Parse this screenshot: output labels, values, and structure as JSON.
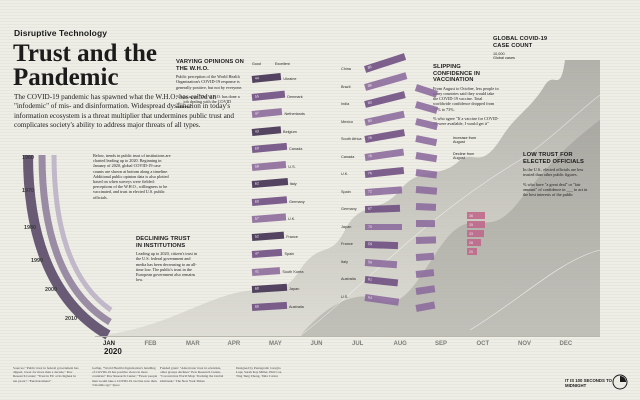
{
  "header": {
    "series": "Disruptive Technology",
    "title": "Trust and the Pandemic",
    "lede": "The COVID-19 pandemic has spawned what the W.H.O. has called an \"infodemic\" of mis- and disinformation. Widespread dysfunction in today's information ecosystem is a threat multiplier that undermines public trust and complicates society's ability to address major threats of all types."
  },
  "intro_note": "Below, trends in public trust of institutions are charted leading up to 2020. Beginning in January of 2020, global COVID-19 case counts are shown at bottom along a timeline. Additional public opinion data is also plotted based on when surveys were fielded: perceptions of the W.H.O., willingness to be vaccinated, and trust in elected U.S. public officials.",
  "declining": {
    "title": "DECLINING TRUST IN INSTITUTIONS",
    "body": "Leading up to 2020, citizen's trust in the U.S. federal government and media has been decreasing to an all-time low. The public's trust in the European government also remains low."
  },
  "who": {
    "title": "VARYING OPINIONS ON THE W.H.O.",
    "body": "Public perception of the World Health Organization's COVID-19 response is generally positive, but not by everyone.",
    "sub": "% who agree \"The W.H.O. has done a ___ job dealing with the COVID outbreak\"",
    "legend": [
      "Good",
      "Excellent"
    ]
  },
  "vaccination": {
    "title": "SLIPPING CONFIDENCE IN VACCINATION",
    "body": "From August to October, less people in many countries said they would take the COVID-19 vaccine. Total worldwide confidence dropped from 77% to 73%.",
    "sub": "% who agree \"If a vaccine for COVID-19 were available, I would get it\"",
    "legend": [
      "Increase from August",
      "Decline from August"
    ]
  },
  "elected": {
    "title": "LOW TRUST FOR ELECTED OFFICIALS",
    "body": "In the U.S., elected officials are less trusted than other public figures.",
    "sub": "% who have \"a great deal\" or \"fair amount\" of confidence in ___ to act in the best interests of the public"
  },
  "cases": {
    "title": "GLOBAL COVID-19 CASE COUNT",
    "legend": [
      "10,000",
      "Global cases"
    ]
  },
  "timeline": {
    "year": "2020",
    "months": [
      "JAN",
      "FEB",
      "MAR",
      "APR",
      "MAY",
      "JUN",
      "JUL",
      "AUG",
      "SEP",
      "OCT",
      "NOV",
      "DEC"
    ]
  },
  "decades": [
    "1960",
    "1970",
    "1980",
    "1990",
    "2000",
    "2010"
  ],
  "who_countries": [
    "Ukraine",
    "Denmark",
    "Netherlands",
    "Belgium",
    "Canada",
    "U.S.",
    "Italy",
    "Germany",
    "U.K.",
    "France",
    "Spain",
    "South Korea",
    "Japan",
    "Australia"
  ],
  "who_values": [
    "44",
    "55",
    "47",
    "43",
    "60",
    "58",
    "62",
    "60",
    "57",
    "52",
    "47",
    "41",
    "60",
    "60"
  ],
  "vac_countries": [
    "China",
    "Brazil",
    "India",
    "Mexico",
    "South Africa",
    "Canada",
    "U.K.",
    "Spain",
    "Germany",
    "Japan",
    "France",
    "Italy",
    "Australia",
    "U.S."
  ],
  "vac_values": [
    "85",
    "88",
    "83",
    "80",
    "79",
    "78",
    "76",
    "72",
    "67",
    "70",
    "59",
    "58",
    "61",
    "64"
  ],
  "elected_values": [
    "36",
    "35",
    "33",
    "28",
    "20"
  ],
  "sources": [
    "Sources: \"Public trust in federal government has dipped, lower for more than a decade,\" Pew Research Center; \"Trust in EU at its highest in ten years\"; \"Eurobarometer\"",
    "Gallup, \"World Health Organization's handling of COVID-19 has positive views in most countries\" Pew Research Center; \"Fewer people than would take a COVID-19 vaccine now than 3 months ago\" Ipsos",
    "Funded grant: \"Americans' trust in scientists, other groups declines\" Pew Research Center, \"Coronavirus World Map: Tracking the Global Outbreak,\" The New York Times",
    "Designed by Pentagram: Giorgia Lupi, Sarah Kay Miller, Phil Cox, Ting Tang Zhong, Talia Cotton"
  ],
  "footer": "IT IS 100 SECONDS TO MIDNIGHT"
}
